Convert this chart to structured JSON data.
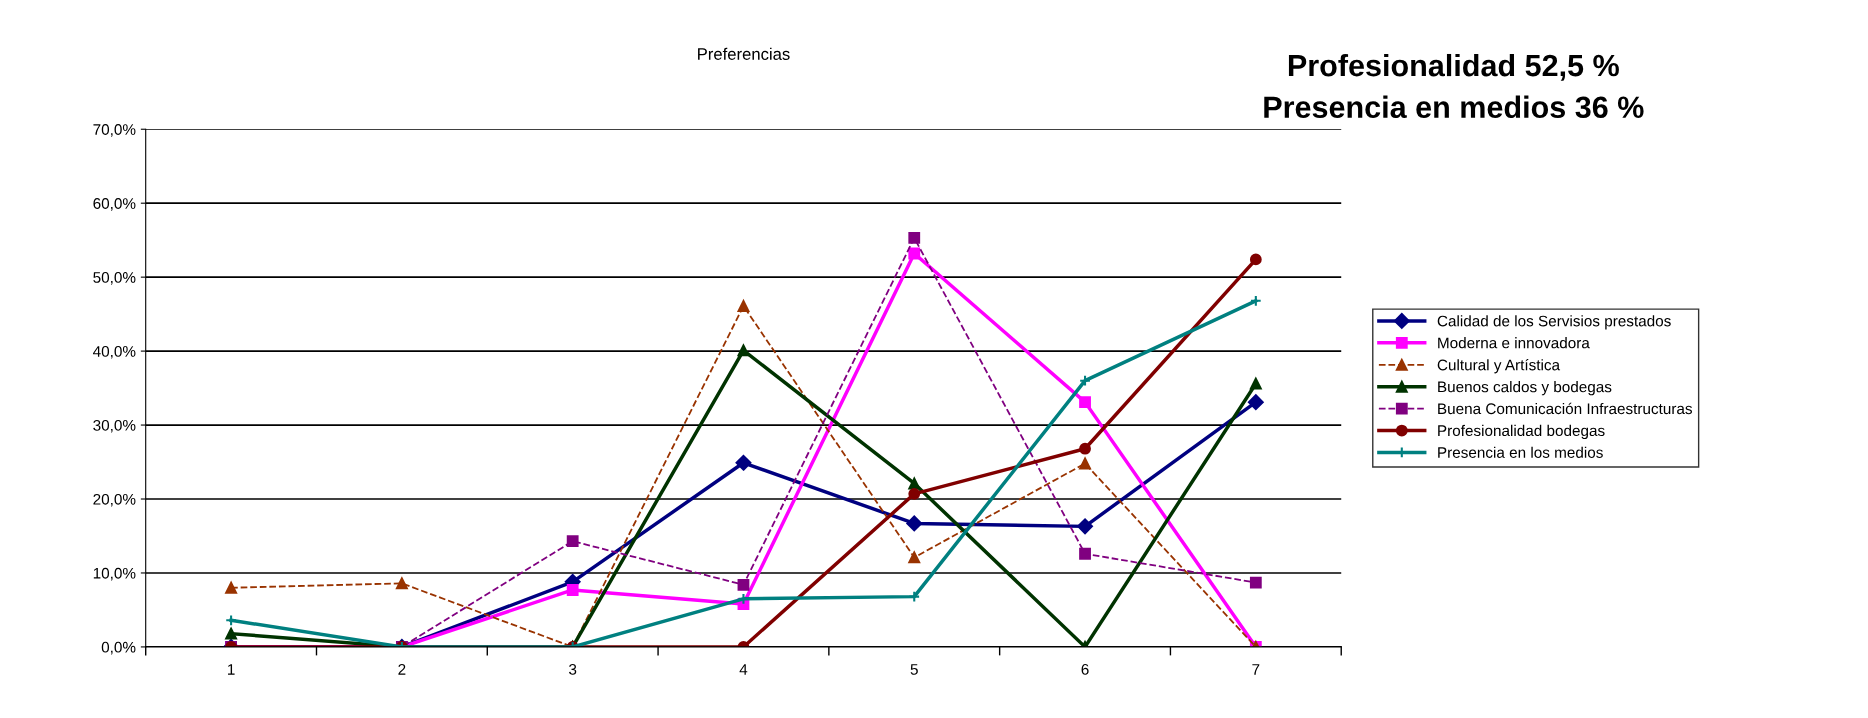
{
  "chart_data": {
    "type": "line",
    "title": "Preferencias",
    "annotations": [
      "Profesionalidad 52,5 %",
      "Presencia en medios 36 %"
    ],
    "categories": [
      "1",
      "2",
      "3",
      "4",
      "5",
      "6",
      "7"
    ],
    "series": [
      {
        "name": "Calidad de los Servisios prestados",
        "color": "#000080",
        "marker": "diamond",
        "line_style": "solid",
        "values": [
          0,
          0,
          8.8,
          24.9,
          16.7,
          16.3,
          33.1
        ]
      },
      {
        "name": "Moderna e innovadora",
        "color": "#ff00ff",
        "marker": "square",
        "line_style": "solid",
        "values": [
          0,
          0,
          7.7,
          5.8,
          53.2,
          33.1,
          0
        ]
      },
      {
        "name": "Cultural y Artística",
        "color": "#993300",
        "marker": "triangle",
        "line_style": "dashed",
        "values": [
          8.0,
          8.6,
          0,
          46.1,
          12.1,
          24.8,
          0
        ]
      },
      {
        "name": "Buenos caldos y bodegas",
        "color": "#003300",
        "marker": "triangle",
        "line_style": "solid",
        "values": [
          1.8,
          0,
          0,
          40.1,
          22.1,
          0,
          35.6
        ]
      },
      {
        "name": "Buena Comunicación Infraestructuras",
        "color": "#800080",
        "marker": "square",
        "line_style": "dashed",
        "values": [
          0,
          0,
          14.3,
          8.4,
          55.3,
          12.6,
          8.7
        ]
      },
      {
        "name": "Profesionalidad bodegas",
        "color": "#800000",
        "marker": "circle",
        "line_style": "solid",
        "values": [
          0,
          0,
          0,
          0,
          20.7,
          26.8,
          52.4
        ]
      },
      {
        "name": "Presencia en los medios",
        "color": "#008080",
        "marker": "cross",
        "line_style": "solid",
        "values": [
          3.6,
          0,
          0,
          6.5,
          6.8,
          36.0,
          46.8
        ]
      }
    ],
    "ylim": [
      0,
      70
    ],
    "yticks": [
      {
        "value": 0,
        "label": "0,0%"
      },
      {
        "value": 10,
        "label": "10,0%"
      },
      {
        "value": 20,
        "label": "20,0%"
      },
      {
        "value": 30,
        "label": "30,0%"
      },
      {
        "value": 40,
        "label": "40,0%"
      },
      {
        "value": 50,
        "label": "50,0%"
      },
      {
        "value": 60,
        "label": "60,0%"
      },
      {
        "value": 70,
        "label": "70,0%"
      }
    ],
    "grid": "y",
    "legend": "right"
  }
}
